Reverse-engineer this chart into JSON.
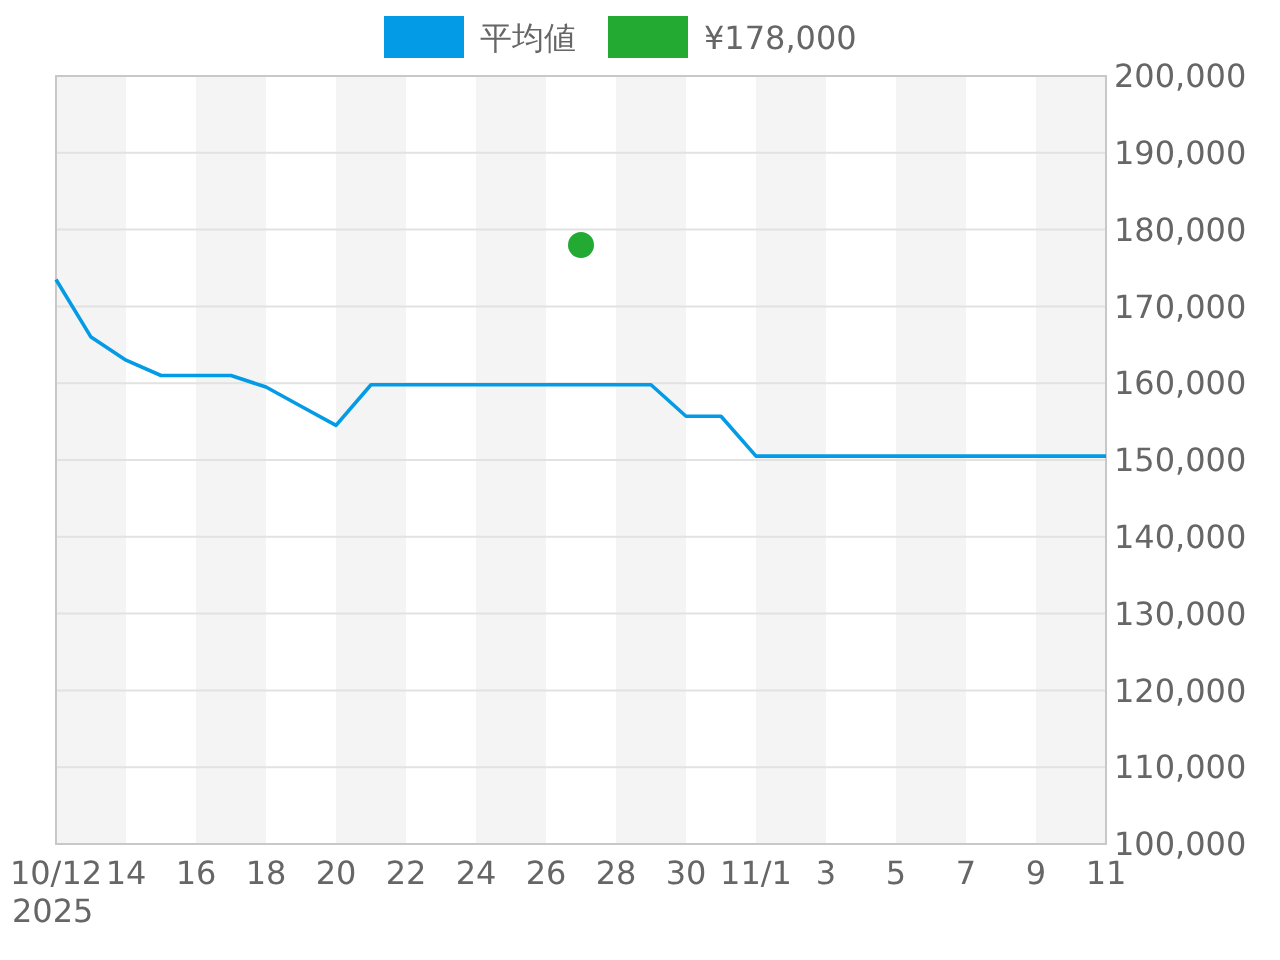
{
  "chart_data": {
    "type": "line",
    "legend": "top",
    "grid": "y",
    "marker": "none",
    "x": [
      "2025-10-12",
      "2025-10-13",
      "2025-10-14",
      "2025-10-15",
      "2025-10-16",
      "2025-10-17",
      "2025-10-18",
      "2025-10-19",
      "2025-10-20",
      "2025-10-21",
      "2025-10-22",
      "2025-10-23",
      "2025-10-24",
      "2025-10-25",
      "2025-10-26",
      "2025-10-27",
      "2025-10-28",
      "2025-10-29",
      "2025-10-30",
      "2025-10-31",
      "2025-11-01",
      "2025-11-02",
      "2025-11-03",
      "2025-11-04",
      "2025-11-05",
      "2025-11-06",
      "2025-11-07",
      "2025-11-08",
      "2025-11-09",
      "2025-11-10",
      "2025-11-11"
    ],
    "series": [
      {
        "name": "平均値",
        "color": "#039be5",
        "values": [
          173500,
          166000,
          163000,
          161000,
          161000,
          161000,
          159500,
          157000,
          154500,
          159800,
          159800,
          159800,
          159800,
          159800,
          159800,
          159800,
          159800,
          159800,
          155700,
          155700,
          150500,
          150500,
          150500,
          150500,
          150500,
          150500,
          150500,
          150500,
          150500,
          150500,
          150500
        ]
      },
      {
        "name": "¥178,000",
        "type": "scatter",
        "marker": "circle",
        "color": "#22aa33",
        "x": [
          "2025-10-27"
        ],
        "values": [
          178000
        ]
      }
    ],
    "xlim": [
      "2025-10-12",
      "2025-11-11"
    ],
    "xticks": [
      {
        "value": "2025-10-12",
        "label": "10/12\n2025"
      },
      {
        "value": "2025-10-14",
        "label": "14"
      },
      {
        "value": "2025-10-16",
        "label": "16"
      },
      {
        "value": "2025-10-18",
        "label": "18"
      },
      {
        "value": "2025-10-20",
        "label": "20"
      },
      {
        "value": "2025-10-22",
        "label": "22"
      },
      {
        "value": "2025-10-24",
        "label": "24"
      },
      {
        "value": "2025-10-26",
        "label": "26"
      },
      {
        "value": "2025-10-28",
        "label": "28"
      },
      {
        "value": "2025-10-30",
        "label": "30"
      },
      {
        "value": "2025-11-01",
        "label": "11/1"
      },
      {
        "value": "2025-11-03",
        "label": "3"
      },
      {
        "value": "2025-11-05",
        "label": "5"
      },
      {
        "value": "2025-11-07",
        "label": "7"
      },
      {
        "value": "2025-11-09",
        "label": "9"
      },
      {
        "value": "2025-11-11",
        "label": "11"
      }
    ],
    "ylim": [
      100000,
      200000
    ],
    "yticks": [
      {
        "value": 100000,
        "label": "100,000"
      },
      {
        "value": 110000,
        "label": "110,000"
      },
      {
        "value": 120000,
        "label": "120,000"
      },
      {
        "value": 130000,
        "label": "130,000"
      },
      {
        "value": 140000,
        "label": "140,000"
      },
      {
        "value": 150000,
        "label": "150,000"
      },
      {
        "value": 160000,
        "label": "160,000"
      },
      {
        "value": 170000,
        "label": "170,000"
      },
      {
        "value": 180000,
        "label": "180,000"
      },
      {
        "value": 190000,
        "label": "190,000"
      },
      {
        "value": 200000,
        "label": "200,000"
      }
    ],
    "bands": [
      {
        "axis": "x",
        "from": "2025-10-12",
        "to": "2025-10-14",
        "color": "#f4f4f4"
      },
      {
        "axis": "x",
        "from": "2025-10-16",
        "to": "2025-10-18",
        "color": "#f4f4f4"
      },
      {
        "axis": "x",
        "from": "2025-10-20",
        "to": "2025-10-22",
        "color": "#f4f4f4"
      },
      {
        "axis": "x",
        "from": "2025-10-24",
        "to": "2025-10-26",
        "color": "#f4f4f4"
      },
      {
        "axis": "x",
        "from": "2025-10-28",
        "to": "2025-10-30",
        "color": "#f4f4f4"
      },
      {
        "axis": "x",
        "from": "2025-11-01",
        "to": "2025-11-03",
        "color": "#f4f4f4"
      },
      {
        "axis": "x",
        "from": "2025-11-05",
        "to": "2025-11-07",
        "color": "#f4f4f4"
      },
      {
        "axis": "x",
        "from": "2025-11-09",
        "to": "2025-11-11",
        "color": "#f4f4f4"
      }
    ]
  }
}
